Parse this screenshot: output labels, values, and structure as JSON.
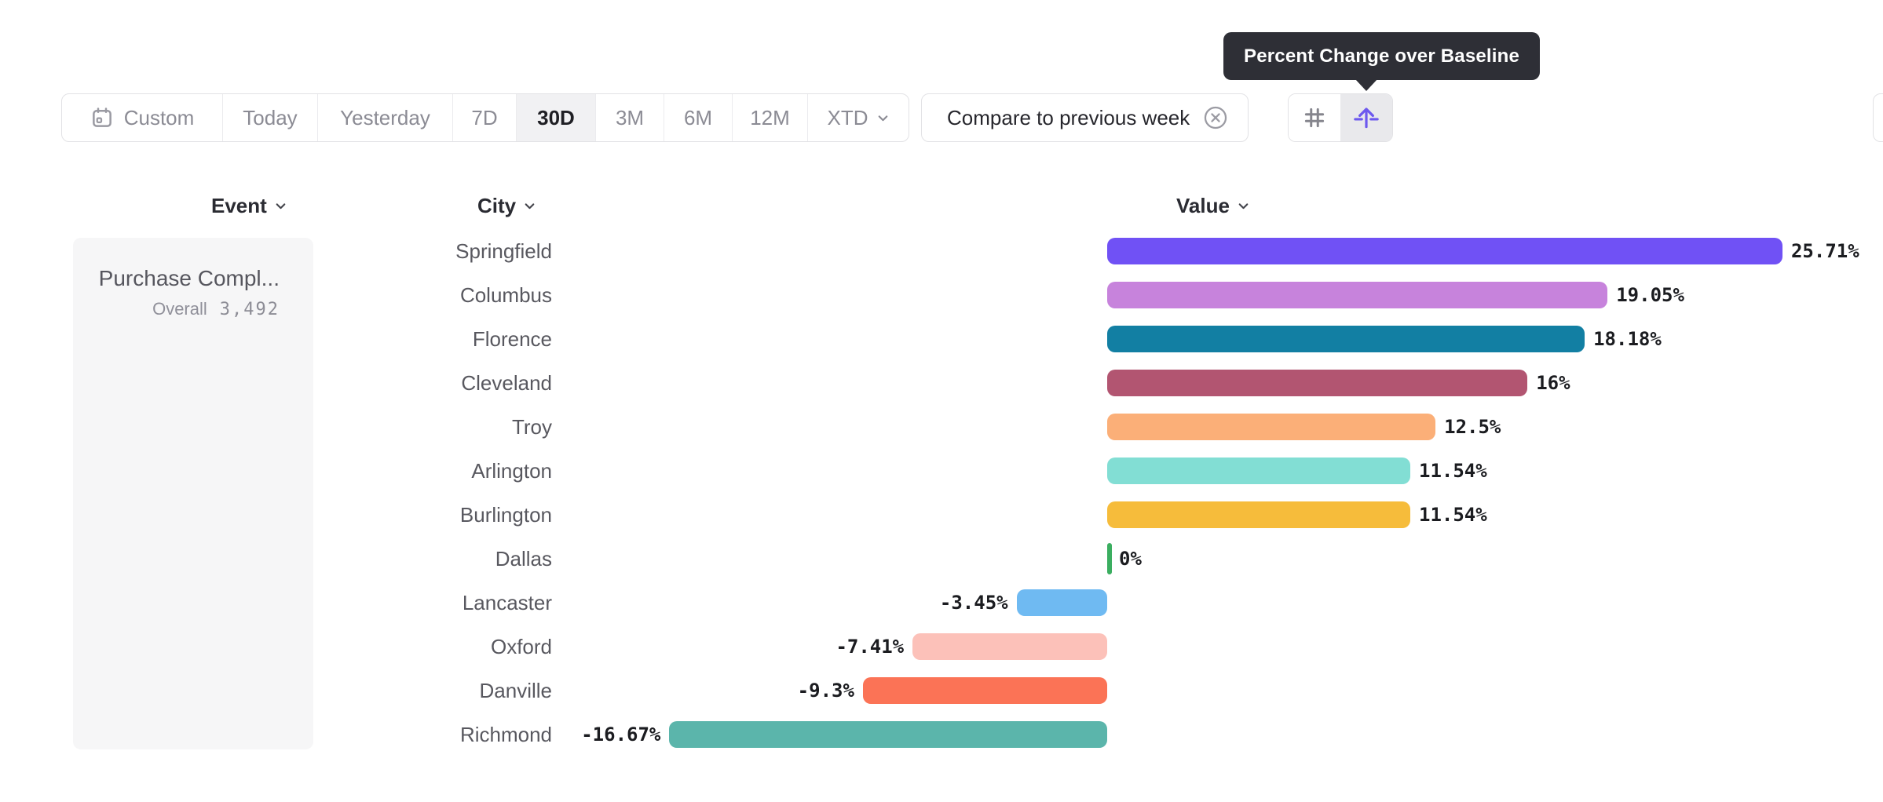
{
  "tooltip": {
    "text": "Percent Change over Baseline"
  },
  "toolbar": {
    "date_ranges": [
      {
        "label": "Custom",
        "selected": false,
        "icon": "calendar-icon",
        "chevron": false
      },
      {
        "label": "Today",
        "selected": false,
        "chevron": false
      },
      {
        "label": "Yesterday",
        "selected": false,
        "chevron": false
      },
      {
        "label": "7D",
        "selected": false,
        "chevron": false
      },
      {
        "label": "30D",
        "selected": true,
        "chevron": false
      },
      {
        "label": "3M",
        "selected": false,
        "chevron": false
      },
      {
        "label": "6M",
        "selected": false,
        "chevron": false
      },
      {
        "label": "12M",
        "selected": false,
        "chevron": false
      },
      {
        "label": "XTD",
        "selected": false,
        "chevron": true
      }
    ],
    "compare_label": "Compare to previous week",
    "compare_icon": "x-circle-icon",
    "view_toggle": [
      {
        "name": "numbers-view",
        "icon": "hash-icon",
        "selected": false
      },
      {
        "name": "percent-change-view",
        "icon": "arrow-up-baseline-icon",
        "selected": true
      }
    ]
  },
  "columns": {
    "event": "Event",
    "city": "City",
    "value": "Value"
  },
  "event_panel": {
    "name": "Purchase Compl...",
    "overall_label": "Overall",
    "overall_value": "3,492"
  },
  "chart_data": {
    "type": "bar",
    "orientation": "horizontal",
    "title": "Percent Change over Baseline",
    "categories": [
      "Springfield",
      "Columbus",
      "Florence",
      "Cleveland",
      "Troy",
      "Arlington",
      "Burlington",
      "Dallas",
      "Lancaster",
      "Oxford",
      "Danville",
      "Richmond"
    ],
    "values": [
      25.71,
      19.05,
      18.18,
      16,
      12.5,
      11.54,
      11.54,
      0,
      -3.45,
      -7.41,
      -9.3,
      -16.67
    ],
    "labels": [
      "25.71%",
      "19.05%",
      "18.18%",
      "16%",
      "12.5%",
      "11.54%",
      "11.54%",
      "0%",
      "-3.45%",
      "-7.41%",
      "-9.3%",
      "-16.67%"
    ],
    "colors": [
      "#7051F5",
      "#C783DC",
      "#127FA3",
      "#B25571",
      "#FBAF78",
      "#82DED4",
      "#F6BC3B",
      "#3BAE60",
      "#6FBAF2",
      "#FCC1B9",
      "#FB7356",
      "#5BB5AB"
    ],
    "baseline": 0,
    "xlim": [
      -16.67,
      25.71
    ],
    "xlabel": "Percent change over baseline",
    "ylabel": "City",
    "grid": false,
    "legend": false
  },
  "colors": {
    "accent_purple": "#6D59EE",
    "baseline_green": "#3BAE60",
    "tooltip_bg": "#2e2f36",
    "border": "#e2e2e5",
    "selected_bg": "#f1f1f3",
    "panel_bg": "#f6f6f7",
    "muted_text": "#8b8b94",
    "dark_text": "#1f1f24"
  }
}
